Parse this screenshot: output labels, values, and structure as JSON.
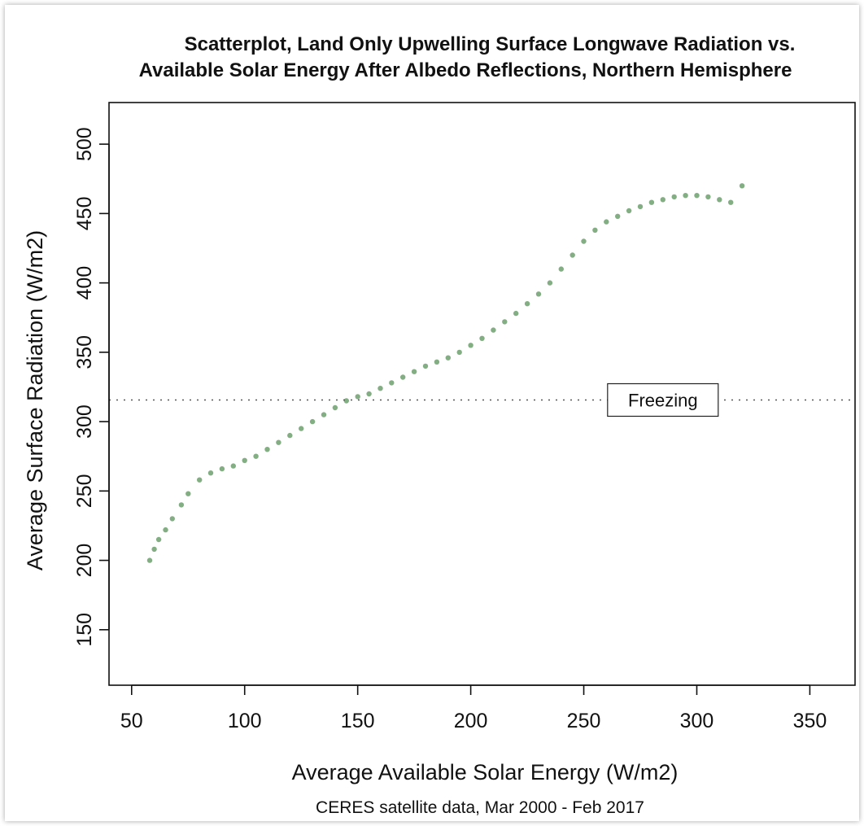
{
  "chart_data": {
    "type": "scatter",
    "title_lines": [
      "Scatterplot, Land Only Upwelling Surface Longwave Radiation vs.",
      "Available Solar Energy After Albedo Reflections, Northern Hemisphere"
    ],
    "xlabel": "Average Available Solar Energy (W/m2)",
    "ylabel": "Average Surface Radiation (W/m2)",
    "caption": "CERES satellite data, Mar 2000 - Feb 2017",
    "xlim": [
      40,
      370
    ],
    "ylim": [
      110,
      530
    ],
    "x_ticks": [
      50,
      100,
      150,
      200,
      250,
      300,
      350
    ],
    "y_ticks": [
      150,
      200,
      250,
      300,
      350,
      400,
      450,
      500
    ],
    "grid": false,
    "point_color": "#1e6b1e",
    "reference_line": {
      "y": 315.6,
      "style": "dotted",
      "label": "Freezing",
      "label_x": 285
    },
    "series": [
      {
        "x": [
          58,
          60,
          62,
          65,
          68,
          72,
          75,
          80,
          85,
          90,
          95,
          100,
          105,
          110,
          115,
          120,
          125,
          130,
          135,
          140,
          145,
          150,
          155,
          160,
          165,
          170,
          175,
          180,
          185,
          190,
          195,
          200,
          205,
          210,
          215,
          220,
          225,
          230,
          235,
          240,
          245,
          250,
          255,
          260,
          265,
          270,
          275,
          280,
          285,
          290,
          295,
          300,
          305,
          310,
          315,
          320
        ],
        "y": [
          200,
          208,
          215,
          222,
          230,
          240,
          248,
          258,
          263,
          266,
          268,
          272,
          275,
          280,
          285,
          290,
          295,
          300,
          305,
          310,
          315,
          318,
          320,
          324,
          328,
          332,
          336,
          340,
          343,
          346,
          350,
          355,
          360,
          366,
          372,
          378,
          385,
          392,
          400,
          410,
          420,
          430,
          438,
          444,
          448,
          452,
          455,
          458,
          460,
          462,
          463,
          463,
          462,
          460,
          458,
          470
        ]
      }
    ]
  }
}
